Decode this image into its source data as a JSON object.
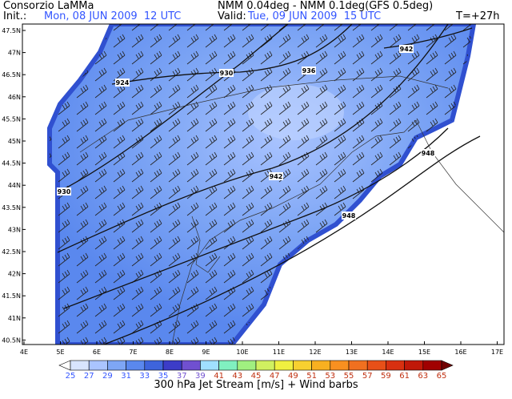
{
  "header": {
    "title": "Consorzio LaMMa",
    "init_label": "Init.:",
    "init_time": "Mon, 08 JUN 2009  12 UTC",
    "model": "NMM 0.04deg - NMM 0.1deg(GFS 0.5deg)",
    "valid_label": "Valid:",
    "valid_time": "Tue, 09 JUN 2009  15 UTC",
    "lead": "T=+27h"
  },
  "map": {
    "lat_labels": [
      "47.5N",
      "47N",
      "46.5N",
      "46N",
      "45.5N",
      "45N",
      "44.5N",
      "44N",
      "43.5N",
      "43N",
      "42.5N",
      "42N",
      "41.5N",
      "41N",
      "40.5N"
    ],
    "lon_labels": [
      "4E",
      "5E",
      "6E",
      "7E",
      "8E",
      "9E",
      "10E",
      "11E",
      "12E",
      "13E",
      "14E",
      "15E",
      "16E",
      "17E"
    ],
    "contour_labels": [
      "942",
      "924",
      "930",
      "936",
      "942",
      "948",
      "948",
      "930"
    ]
  },
  "colorbar": {
    "values": [
      "25",
      "27",
      "29",
      "31",
      "33",
      "35",
      "37",
      "39",
      "41",
      "43",
      "45",
      "47",
      "49",
      "51",
      "53",
      "55",
      "57",
      "59",
      "61",
      "63",
      "65"
    ],
    "colors": [
      "#ffffff",
      "#d8e4ff",
      "#aac4ff",
      "#7ea6f5",
      "#5a88ee",
      "#3e64dc",
      "#3c3cc8",
      "#7050d0",
      "#a0e0ff",
      "#80f0c0",
      "#a0f080",
      "#d0f060",
      "#f0f040",
      "#f8d030",
      "#f8b020",
      "#f89020",
      "#f07020",
      "#e85018",
      "#d83010",
      "#c01808",
      "#a00000",
      "#700000"
    ],
    "title": "300 hPa Jet Stream [m/s] + Wind barbs"
  }
}
